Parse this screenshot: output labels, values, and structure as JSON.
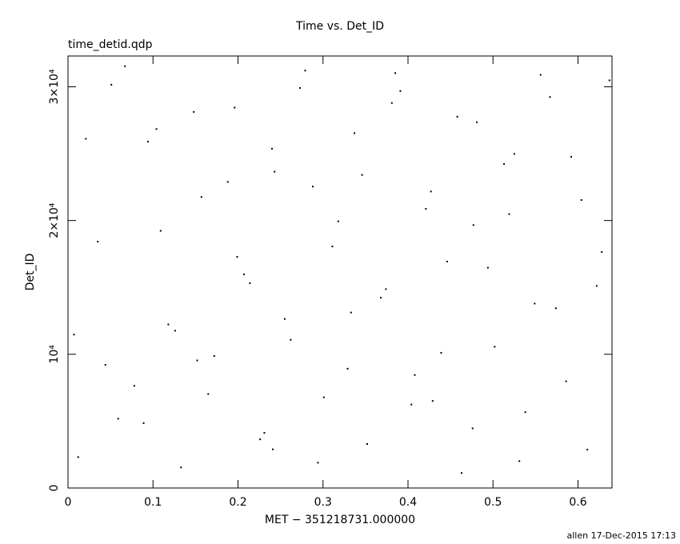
{
  "chart_data": {
    "type": "scatter",
    "title": "Time vs. Det_ID",
    "subtitle": "time_detid.qdp",
    "x_label": "MET − 351218731.000000",
    "y_label": "Det_ID",
    "footer": "allen 17-Dec-2015 17:13",
    "color": "#000000",
    "xlim": [
      0,
      0.64
    ],
    "ylim": [
      0,
      32300
    ],
    "xticks": [
      0,
      0.1,
      0.2,
      0.3,
      0.4,
      0.5,
      0.6
    ],
    "yticks": [
      0,
      {
        "value": 10000,
        "label": "10⁴"
      },
      {
        "value": 20000,
        "label": "2×10⁴"
      },
      {
        "value": 30000,
        "label": "3×10⁴"
      }
    ],
    "x": [
      0.012,
      0.035,
      0.051,
      0.078,
      0.094,
      0.118,
      0.133,
      0.157,
      0.172,
      0.196,
      0.214,
      0.231,
      0.243,
      0.262,
      0.279,
      0.301,
      0.318,
      0.337,
      0.352,
      0.374,
      0.391,
      0.408,
      0.427,
      0.446,
      0.463,
      0.481,
      0.502,
      0.519,
      0.538,
      0.556,
      0.574,
      0.592,
      0.611,
      0.628,
      0.021,
      0.044,
      0.067,
      0.089,
      0.109,
      0.126,
      0.148,
      0.165,
      0.188,
      0.207,
      0.226,
      0.24,
      0.255,
      0.273,
      0.294,
      0.311,
      0.329,
      0.346,
      0.368,
      0.385,
      0.404,
      0.421,
      0.439,
      0.458,
      0.476,
      0.494,
      0.513,
      0.531,
      0.549,
      0.567,
      0.586,
      0.604,
      0.622,
      0.637,
      0.007,
      0.059,
      0.104,
      0.152,
      0.199,
      0.241,
      0.288,
      0.333,
      0.381,
      0.429,
      0.477,
      0.525
    ],
    "values": [
      2310,
      18420,
      30150,
      7640,
      25890,
      12230,
      1540,
      21760,
      9870,
      28440,
      15320,
      4120,
      23650,
      11080,
      31210,
      6780,
      19940,
      26530,
      3290,
      14870,
      29680,
      8450,
      22170,
      16930,
      1120,
      27350,
      10560,
      20480,
      5670,
      30890,
      13440,
      24760,
      2870,
      17650,
      26110,
      9210,
      31540,
      4850,
      19230,
      11760,
      28120,
      7030,
      22890,
      15980,
      3640,
      25370,
      12640,
      29910,
      1890,
      18060,
      8920,
      23410,
      14230,
      31020,
      6240,
      20870,
      10110,
      27760,
      4460,
      16470,
      24220,
      2010,
      13790,
      29230,
      7980,
      21530,
      15110,
      30480,
      11470,
      5180,
      26840,
      9540,
      17280,
      2890,
      22540,
      13120,
      28790,
      6510,
      19660,
      24980
    ]
  }
}
